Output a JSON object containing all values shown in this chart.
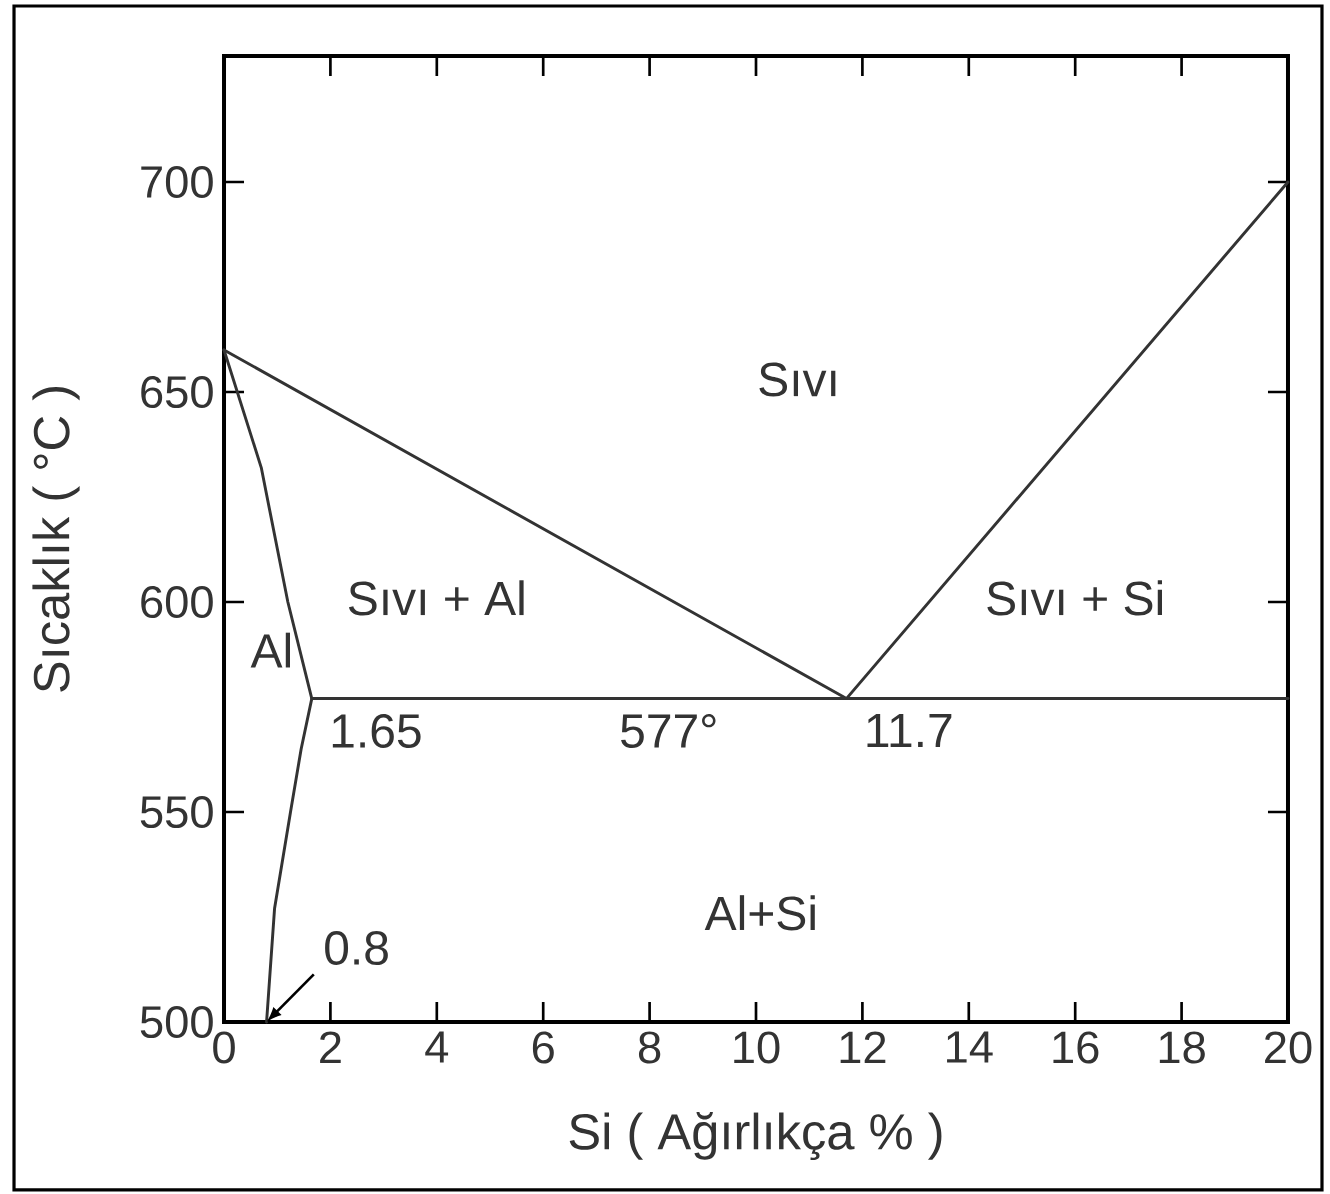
{
  "chart_data": {
    "type": "line",
    "xlabel": "Si ( Ağırlıkça % )",
    "ylabel": "Sıcaklık ( °C )",
    "xlim": [
      0,
      20
    ],
    "xticks": [
      0,
      2,
      4,
      6,
      8,
      10,
      12,
      14,
      16,
      18,
      20
    ],
    "ylim": [
      500,
      730
    ],
    "yticks": [
      500,
      550,
      600,
      650,
      700
    ],
    "grid": false,
    "marker": "none",
    "line_style": "solid",
    "series": [
      {
        "color": "#333333",
        "x": [
          0,
          11.7,
          20
        ],
        "values": [
          660,
          577,
          700
        ]
      },
      {
        "color": "#333333",
        "x": [
          1.65,
          20
        ],
        "values": [
          577,
          577
        ]
      },
      {
        "color": "#333333",
        "x": [
          0,
          0.7,
          1.2,
          1.65,
          1.45,
          1.25,
          0.95,
          0.8
        ],
        "values": [
          660,
          632,
          600,
          577,
          565,
          550,
          527,
          500
        ]
      }
    ],
    "annotations": [
      "Sıvı",
      "Sıvı + Al",
      "Sıvı + Si",
      "Al",
      {
        "text": "1.65",
        "x": 1.65,
        "y": 577
      },
      {
        "text": "577°",
        "x": 7.1,
        "y": 577
      },
      {
        "text": "11.7",
        "x": 11.7,
        "y": 577
      },
      "Al+Si",
      {
        "text": "0.8",
        "x": 0.8,
        "y": 500
      }
    ]
  }
}
